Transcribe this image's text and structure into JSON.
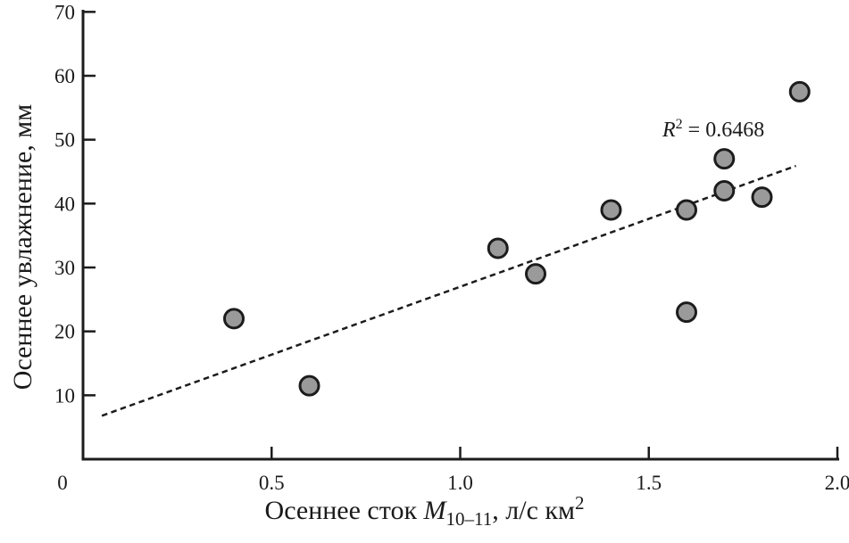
{
  "figure": {
    "background": "#ffffff"
  },
  "labels": {
    "ylabel": "Осеннее увлажнение, мм",
    "xlabel_prefix": "Осеннее сток ",
    "xlabel_variable": "M",
    "xlabel_subscript": "10–11",
    "xlabel_middle": ", л/с км",
    "xlabel_superscript": "2",
    "annotation_variable": "R",
    "annotation_superscript": "2",
    "annotation_rest": " = 0.6468"
  },
  "chart_data": {
    "type": "scatter",
    "title": "",
    "xlabel": "Осеннее сток M₁₀₋₁₁, л/с км²",
    "ylabel": "Осеннее увлажнение, мм",
    "xlim": [
      0,
      2.0
    ],
    "ylim": [
      0,
      70
    ],
    "grid": false,
    "legend": "none",
    "x_ticks": [
      {
        "value": 0,
        "label": "0"
      },
      {
        "value": 0.5,
        "label": "0.5"
      },
      {
        "value": 1.0,
        "label": "1.0"
      },
      {
        "value": 1.5,
        "label": "1.5"
      },
      {
        "value": 2.0,
        "label": "2.0"
      }
    ],
    "y_ticks": [
      {
        "value": 10,
        "label": "10"
      },
      {
        "value": 20,
        "label": "20"
      },
      {
        "value": 30,
        "label": "30"
      },
      {
        "value": 40,
        "label": "40"
      },
      {
        "value": 50,
        "label": "50"
      },
      {
        "value": 60,
        "label": "60"
      },
      {
        "value": 70,
        "label": "70"
      }
    ],
    "points": [
      [
        0.4,
        22
      ],
      [
        0.6,
        11.5
      ],
      [
        1.1,
        33
      ],
      [
        1.2,
        29
      ],
      [
        1.4,
        39
      ],
      [
        1.6,
        39
      ],
      [
        1.6,
        23
      ],
      [
        1.7,
        47
      ],
      [
        1.7,
        42
      ],
      [
        1.8,
        41
      ],
      [
        1.9,
        57.5
      ]
    ],
    "trendline": {
      "type": "linear",
      "style": "dotted",
      "x1": 0.05,
      "y1": 6.8,
      "x2": 1.89,
      "y2": 45.9,
      "r_squared": 0.6468
    },
    "annotation": {
      "text": "R² = 0.6468",
      "x": 1.69,
      "y": 51
    },
    "colors": {
      "marker_fill": "#9a9a9a",
      "marker_stroke": "#1c1c1c",
      "axis": "#1c1c1c",
      "trendline": "#1c1c1c"
    }
  }
}
